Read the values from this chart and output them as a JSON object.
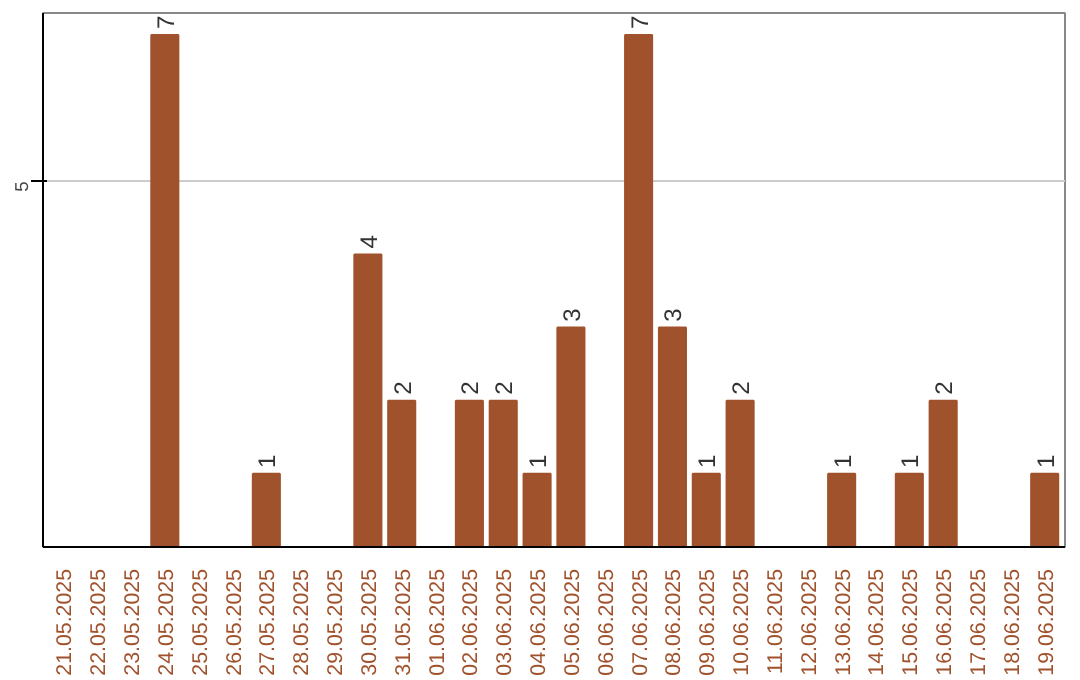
{
  "chart_data": {
    "type": "bar",
    "categories": [
      "21.05.2025",
      "22.05.2025",
      "23.05.2025",
      "24.05.2025",
      "25.05.2025",
      "26.05.2025",
      "27.05.2025",
      "28.05.2025",
      "29.05.2025",
      "30.05.2025",
      "31.05.2025",
      "01.06.2025",
      "02.06.2025",
      "03.06.2025",
      "04.06.2025",
      "05.06.2025",
      "06.06.2025",
      "07.06.2025",
      "08.06.2025",
      "09.06.2025",
      "10.06.2025",
      "11.06.2025",
      "12.06.2025",
      "13.06.2025",
      "14.06.2025",
      "15.06.2025",
      "16.06.2025",
      "17.06.2025",
      "18.06.2025",
      "19.06.2025"
    ],
    "values": [
      0,
      0,
      0,
      7,
      0,
      0,
      1,
      0,
      0,
      4,
      2,
      0,
      2,
      2,
      1,
      3,
      0,
      7,
      3,
      1,
      2,
      0,
      0,
      1,
      0,
      1,
      2,
      0,
      0,
      1
    ],
    "value_labels": [
      null,
      null,
      null,
      "7",
      null,
      null,
      "1",
      null,
      null,
      "4",
      "2",
      null,
      "2",
      "2",
      "1",
      "3",
      null,
      "7",
      "3",
      "1",
      "2",
      null,
      null,
      "1",
      null,
      "1",
      "2",
      null,
      null,
      "1"
    ],
    "color": "#a0522d",
    "ylim": [
      0,
      7.3
    ],
    "yticks": [
      5
    ],
    "grid": "y"
  }
}
